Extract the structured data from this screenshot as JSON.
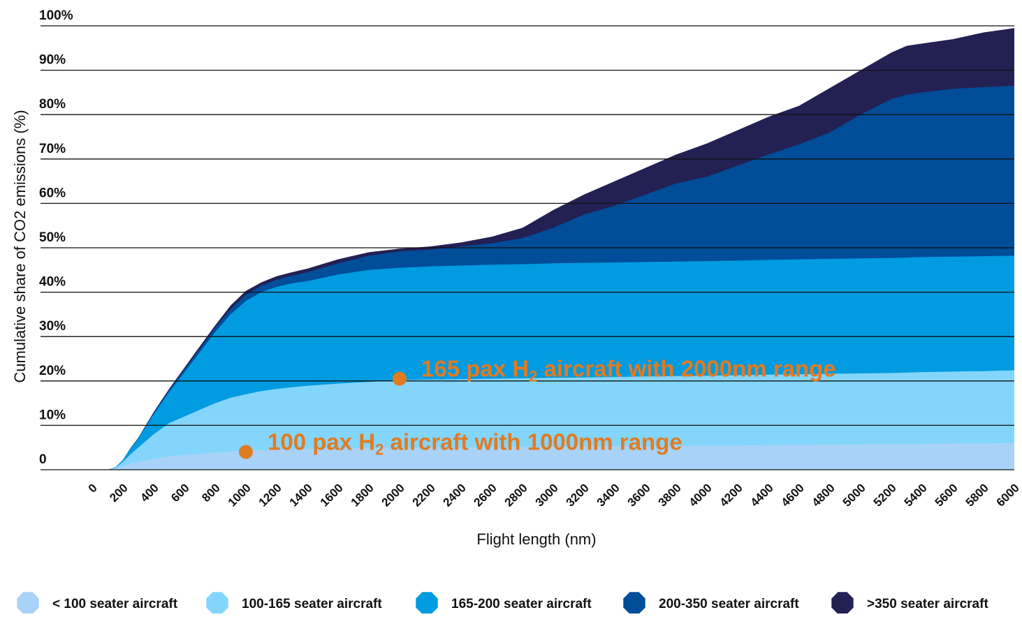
{
  "chart_data": {
    "type": "area",
    "stacked": true,
    "xlabel": "Flight length (nm)",
    "ylabel": "Cumulative share of CO2 emissions (%)",
    "xlim": [
      0,
      6000
    ],
    "ylim": [
      0,
      100
    ],
    "x_ticks": [
      0,
      200,
      400,
      600,
      800,
      1000,
      1200,
      1400,
      1600,
      1800,
      2000,
      2200,
      2400,
      2600,
      2800,
      3000,
      3200,
      3400,
      3600,
      3800,
      4000,
      4200,
      4400,
      4600,
      4800,
      5000,
      5200,
      5400,
      5600,
      5800,
      6000
    ],
    "y_ticks": [
      {
        "value": 0,
        "label": "0"
      },
      {
        "value": 10,
        "label": "10%"
      },
      {
        "value": 20,
        "label": "20%"
      },
      {
        "value": 30,
        "label": "30%"
      },
      {
        "value": 40,
        "label": "40%"
      },
      {
        "value": 50,
        "label": "50%"
      },
      {
        "value": 60,
        "label": "60%"
      },
      {
        "value": 70,
        "label": "70%"
      },
      {
        "value": 80,
        "label": "80%"
      },
      {
        "value": 90,
        "label": "90%"
      },
      {
        "value": 100,
        "label": "100%"
      }
    ],
    "grid": "horizontal",
    "legend_position": "bottom",
    "x": [
      0,
      100,
      150,
      200,
      250,
      300,
      400,
      500,
      600,
      700,
      800,
      900,
      1000,
      1100,
      1200,
      1300,
      1400,
      1600,
      1800,
      2000,
      2200,
      2400,
      2600,
      2800,
      3000,
      3200,
      3400,
      3600,
      3800,
      4000,
      4200,
      4400,
      4600,
      4800,
      5000,
      5200,
      5300,
      5400,
      5600,
      5800,
      6000
    ],
    "series": [
      {
        "name": "< 100 seater aircraft",
        "color": "#a9d2f8",
        "cumulative": [
          0,
          0,
          0.2,
          0.8,
          1.4,
          1.8,
          2.5,
          3,
          3.3,
          3.6,
          3.9,
          4.1,
          4.3,
          4.4,
          4.5,
          4.6,
          4.7,
          4.8,
          4.9,
          5,
          5,
          5.05,
          5.1,
          5.15,
          5.2,
          5.25,
          5.3,
          5.35,
          5.4,
          5.45,
          5.5,
          5.55,
          5.6,
          5.65,
          5.7,
          5.75,
          5.8,
          5.85,
          5.9,
          5.95,
          6
        ]
      },
      {
        "name": "100-165 seater aircraft",
        "color": "#84d5fb",
        "cumulative": [
          0,
          0,
          0.4,
          1.8,
          3.5,
          5,
          8,
          10.5,
          12,
          13.5,
          15,
          16.2,
          17,
          17.7,
          18.2,
          18.6,
          18.9,
          19.4,
          19.8,
          20.2,
          20.3,
          20.4,
          20.5,
          20.6,
          20.7,
          20.8,
          20.9,
          21,
          21.1,
          21.2,
          21.3,
          21.4,
          21.5,
          21.6,
          21.7,
          21.8,
          21.9,
          22,
          22.1,
          22.2,
          22.4
        ]
      },
      {
        "name": "165-200 seater aircraft",
        "color": "#009be0",
        "cumulative": [
          0,
          0,
          0.5,
          2.2,
          4.8,
          7,
          12.5,
          17.5,
          22,
          26.5,
          31,
          35,
          38,
          40,
          41.2,
          42,
          42.5,
          44,
          45,
          45.5,
          45.8,
          46,
          46.2,
          46.3,
          46.5,
          46.6,
          46.7,
          46.8,
          46.9,
          47,
          47.1,
          47.3,
          47.4,
          47.5,
          47.6,
          47.7,
          47.8,
          47.9,
          48,
          48.1,
          48.2
        ]
      },
      {
        "name": "200-350 seater aircraft",
        "color": "#004d99",
        "cumulative": [
          0,
          0,
          0.5,
          2.2,
          4.9,
          7.2,
          12.9,
          18,
          22.7,
          27.3,
          32,
          36.2,
          39.5,
          41.5,
          42.8,
          43.7,
          44.5,
          46.5,
          48.2,
          49.2,
          49.6,
          50.3,
          51,
          52.2,
          54.5,
          57.5,
          59.5,
          62,
          64.5,
          66,
          68.5,
          71,
          73.3,
          76,
          80,
          83.5,
          84.5,
          85,
          85.8,
          86.2,
          86.5
        ]
      },
      {
        "name": ">350 seater aircraft",
        "color": "#232054",
        "cumulative": [
          0,
          0,
          0.5,
          2.2,
          4.9,
          7.2,
          13,
          18.2,
          23,
          27.8,
          32.5,
          37,
          40.3,
          42.2,
          43.6,
          44.5,
          45.3,
          47.4,
          49,
          49.8,
          50.3,
          51.2,
          52.5,
          54.5,
          58.5,
          62,
          65,
          68,
          71,
          73.5,
          76.5,
          79.5,
          82,
          86,
          90,
          94,
          95.5,
          96,
          97,
          98.5,
          99.5
        ]
      }
    ],
    "annotations": [
      {
        "x": 1000,
        "y": 4,
        "color": "#e07b22",
        "text_before": "100 pax H",
        "subscript": "2",
        "text_after": " aircraft with 1000nm range"
      },
      {
        "x": 2000,
        "y": 20.5,
        "color": "#e07b22",
        "text_before": "165 pax H",
        "subscript": "2",
        "text_after": " aircraft with 2000nm range"
      }
    ]
  }
}
